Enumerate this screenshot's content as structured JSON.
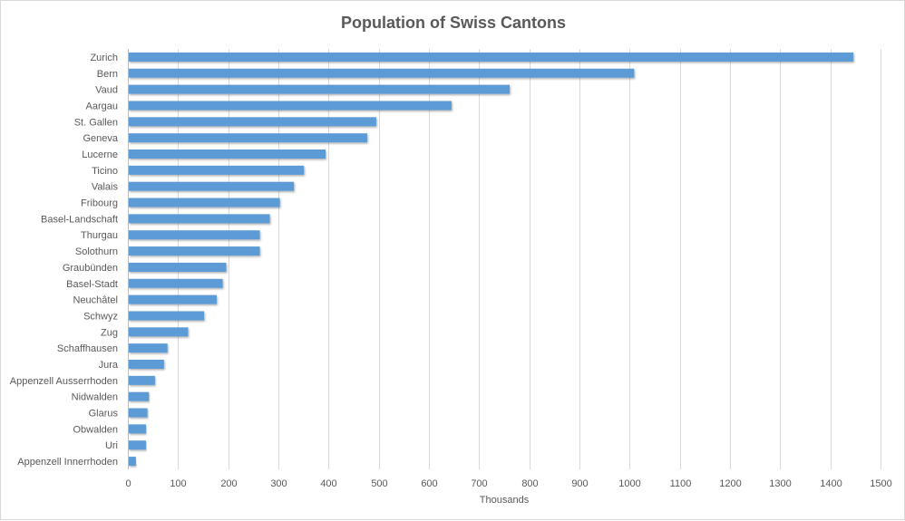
{
  "chart_data": {
    "type": "bar",
    "orientation": "horizontal",
    "title": "Population of Swiss Cantons",
    "xlabel": "Thousands",
    "ylabel": "",
    "xlim": [
      0,
      1500
    ],
    "x_ticks": [
      0,
      100,
      200,
      300,
      400,
      500,
      600,
      700,
      800,
      900,
      1000,
      1100,
      1200,
      1300,
      1400,
      1500
    ],
    "grid": true,
    "bar_color": "#5b9bd5",
    "categories": [
      "Zurich",
      "Bern",
      "Vaud",
      "Aargau",
      "St. Gallen",
      "Geneva",
      "Lucerne",
      "Ticino",
      "Valais",
      "Fribourg",
      "Basel-Landschaft",
      "Thurgau",
      "Solothurn",
      "Graubünden",
      "Basel-Stadt",
      "Neuchâtel",
      "Schwyz",
      "Zug",
      "Schaffhausen",
      "Jura",
      "Appenzell Ausserrhoden",
      "Nidwalden",
      "Glarus",
      "Obwalden",
      "Uri",
      "Appenzell Innerrhoden"
    ],
    "values": [
      1446,
      1009,
      761,
      645,
      495,
      477,
      394,
      351,
      331,
      303,
      283,
      263,
      263,
      196,
      189,
      177,
      152,
      120,
      79,
      72,
      54,
      42,
      39,
      36,
      36,
      16
    ]
  }
}
